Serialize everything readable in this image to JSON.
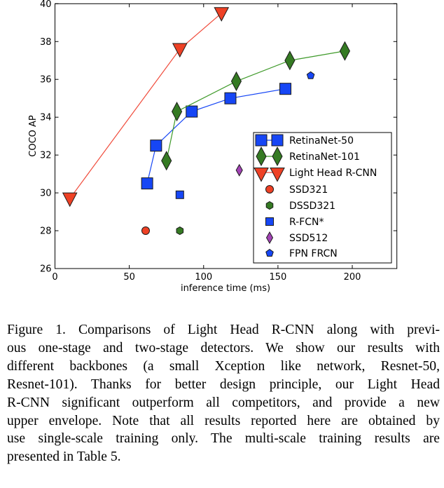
{
  "chart_data": {
    "type": "scatter",
    "title": "",
    "xlabel": "inference time (ms)",
    "ylabel": "COCO AP",
    "xlim": [
      0,
      230
    ],
    "ylim": [
      26,
      40
    ],
    "xticks": [
      0,
      50,
      100,
      150,
      200
    ],
    "yticks": [
      26,
      28,
      30,
      32,
      34,
      36,
      38,
      40
    ],
    "grid": false,
    "legend_position": "lower-right",
    "series": [
      {
        "name": "RetinaNet-50",
        "marker": "square",
        "size": "large",
        "line": true,
        "color": "#1646f5",
        "line_color": "#1646f5",
        "x": [
          62,
          68,
          92,
          118,
          155
        ],
        "y": [
          30.5,
          32.5,
          34.3,
          35.0,
          35.5
        ]
      },
      {
        "name": "RetinaNet-101",
        "marker": "diamond",
        "size": "large",
        "line": true,
        "color": "#357a23",
        "line_color": "#3f9a2a",
        "x": [
          75,
          82,
          122,
          158,
          195
        ],
        "y": [
          31.7,
          34.3,
          35.9,
          37.0,
          37.5
        ]
      },
      {
        "name": "Light Head R-CNN",
        "marker": "triangle-down",
        "size": "large",
        "line": true,
        "color": "#ee4125",
        "line_color": "#f04a3a",
        "x": [
          10,
          84,
          112
        ],
        "y": [
          29.7,
          37.6,
          39.5
        ]
      },
      {
        "name": "SSD321",
        "marker": "circle",
        "size": "small",
        "line": false,
        "color": "#ee4125",
        "x": [
          61
        ],
        "y": [
          28.0
        ]
      },
      {
        "name": "DSSD321",
        "marker": "hexagon",
        "size": "small",
        "line": false,
        "color": "#357a23",
        "x": [
          84
        ],
        "y": [
          28.0
        ]
      },
      {
        "name": "R-FCN*",
        "marker": "square",
        "size": "small",
        "line": false,
        "color": "#1646f5",
        "x": [
          84
        ],
        "y": [
          29.9
        ]
      },
      {
        "name": "SSD512",
        "marker": "thin-diamond",
        "size": "small",
        "line": false,
        "color": "#a243b5",
        "x": [
          124
        ],
        "y": [
          31.2
        ]
      },
      {
        "name": "FPN FRCN",
        "marker": "pentagon",
        "size": "small",
        "line": false,
        "color": "#1646f5",
        "x": [
          172
        ],
        "y": [
          36.2
        ]
      }
    ]
  },
  "caption": {
    "lines": [
      "Figure 1. Comparisons of Light Head R-CNN along with previ-",
      "ous one-stage and two-stage detectors. We show our results with",
      "different backbones (a small Xception like network, Resnet-50,",
      "Resnet-101). Thanks for better design principle, our Light Head",
      "R-CNN significant outperform all competitors, and provide a new",
      "upper envelope. Note that all results reported here are obtained by",
      "use single-scale training only. The multi-scale training results are",
      "presented in Table 5."
    ]
  }
}
